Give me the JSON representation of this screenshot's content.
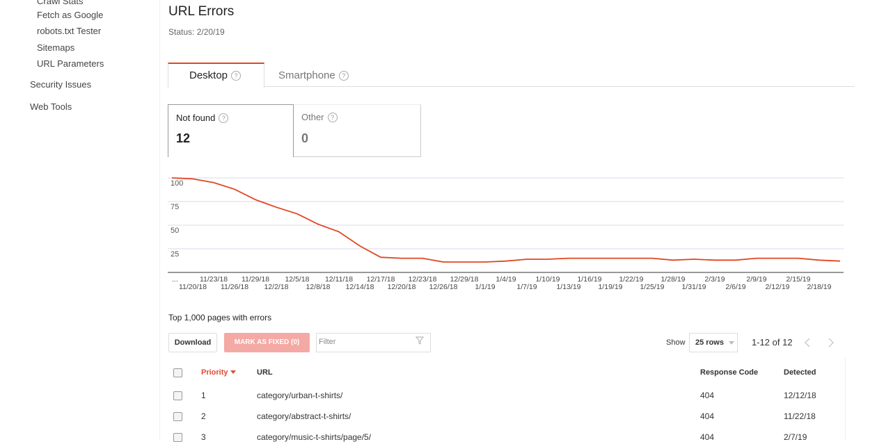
{
  "sidebar": {
    "items": [
      "Crawl Stats",
      "Fetch as Google",
      "robots.txt Tester",
      "Sitemaps",
      "URL Parameters"
    ],
    "sections": [
      "Security Issues",
      "Web Tools"
    ]
  },
  "header": {
    "title": "URL Errors",
    "status": "Status: 2/20/19"
  },
  "tabs": [
    "Desktop",
    "Smartphone"
  ],
  "cards": [
    {
      "label": "Not found",
      "value": 12
    },
    {
      "label": "Other",
      "value": 0
    }
  ],
  "chart_data": {
    "type": "line",
    "categories": [
      "...",
      "11/20/18",
      "11/23/18",
      "11/26/18",
      "11/29/18",
      "12/2/18",
      "12/5/18",
      "12/8/18",
      "12/11/18",
      "12/14/18",
      "12/17/18",
      "12/20/18",
      "12/23/18",
      "12/26/18",
      "12/29/18",
      "1/1/19",
      "1/4/19",
      "1/7/19",
      "1/10/19",
      "1/13/19",
      "1/16/19",
      "1/19/19",
      "1/22/19",
      "1/25/19",
      "1/28/19",
      "1/31/19",
      "2/3/19",
      "2/6/19",
      "2/9/19",
      "2/12/19",
      "2/15/19",
      "2/18/19",
      null
    ],
    "values": [
      100,
      99,
      95,
      88,
      77,
      69,
      62,
      51,
      43,
      28,
      16,
      15,
      15,
      11,
      11,
      11,
      12,
      14,
      14,
      15,
      15,
      15,
      15,
      15,
      13,
      14,
      13,
      13,
      15,
      15,
      15,
      13,
      12
    ],
    "color": "#e2451f",
    "ylim": [
      0,
      100
    ],
    "yticks": [
      25,
      50,
      75,
      100
    ],
    "grid": true
  },
  "table": {
    "caption": "Top 1,000 pages with errors",
    "buttons": [
      "Download",
      "MARK AS FIXED (0)"
    ],
    "filter_placeholder": "Filter",
    "show_label": "Show",
    "rows_option": "25 rows",
    "pagination": "1-12 of 12",
    "columns": [
      "Priority",
      "URL",
      "Response Code",
      "Detected"
    ],
    "rows": [
      [
        1,
        "category/urban-t-shirts/",
        404,
        "12/12/18"
      ],
      [
        2,
        "category/abstract-t-shirts/",
        404,
        "11/22/18"
      ],
      [
        3,
        "category/music-t-shirts/page/5/",
        404,
        "2/7/19"
      ]
    ]
  }
}
